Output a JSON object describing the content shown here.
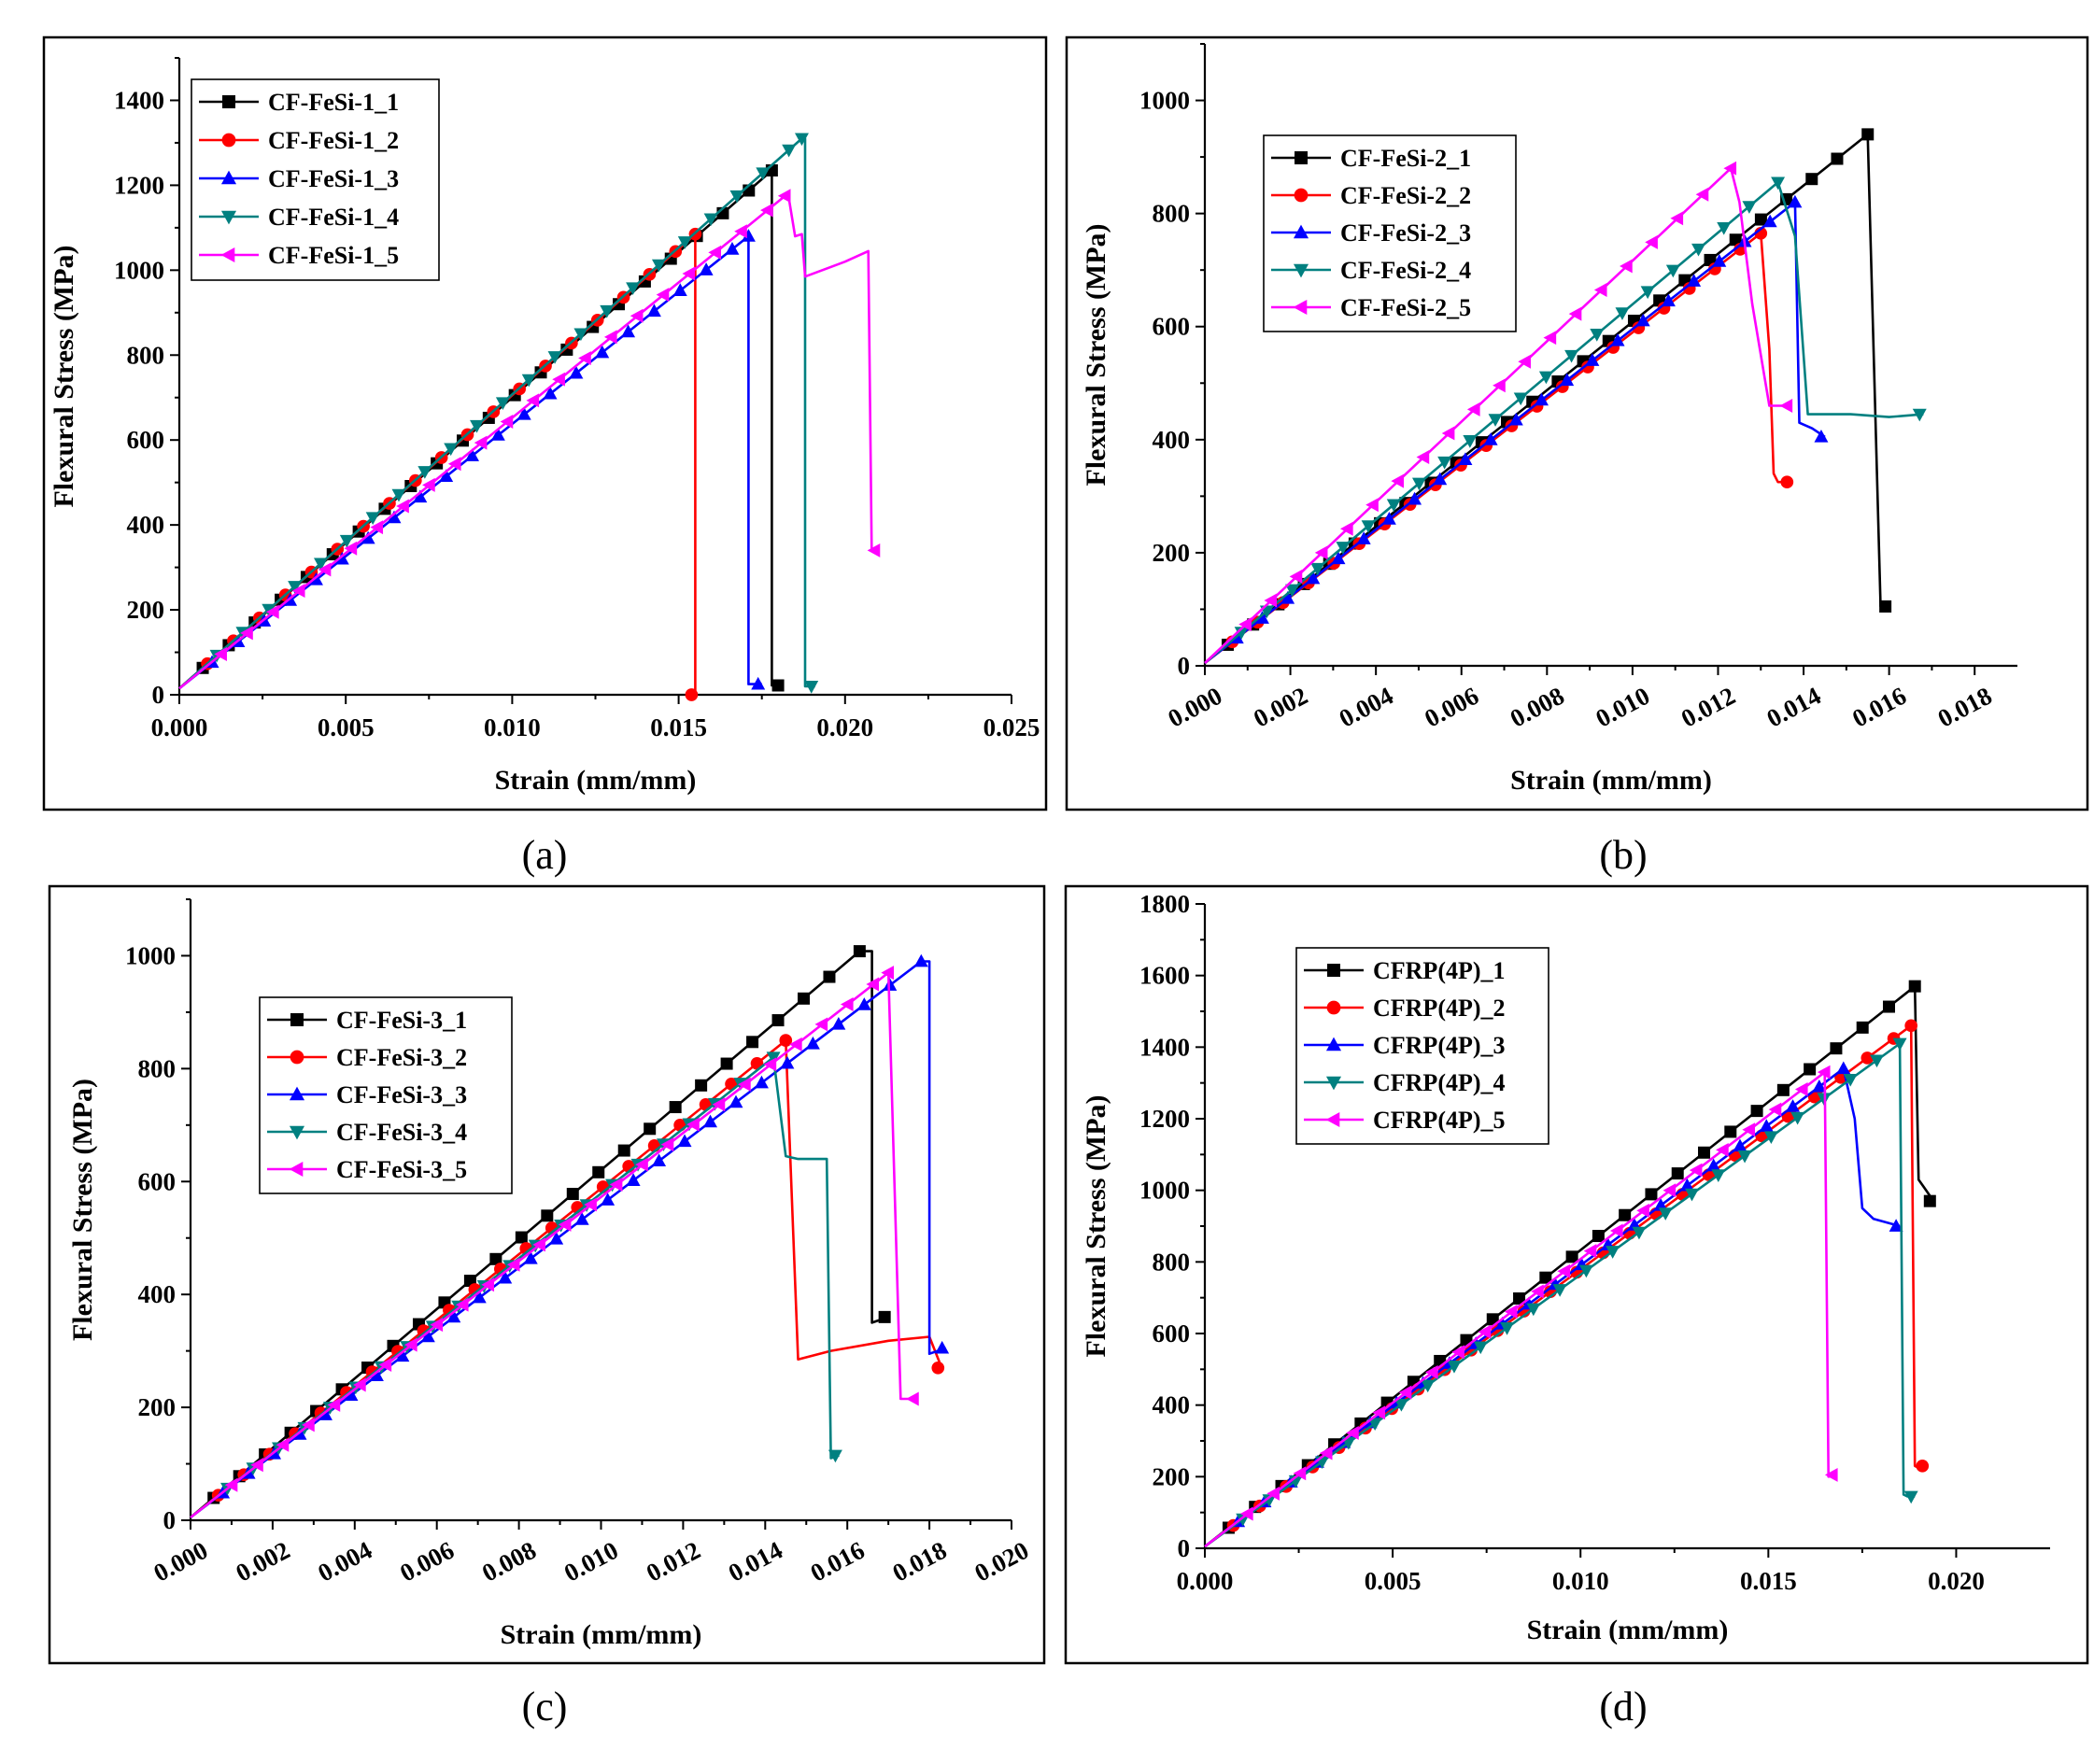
{
  "figure": {
    "panels": [
      "(a)",
      "(b)",
      "(c)",
      "(d)"
    ]
  },
  "chart_data": [
    {
      "type": "line",
      "panel_label": "(a)",
      "xlabel": "Strain (mm/mm)",
      "ylabel": "Flexural Stress (MPa)",
      "xlim": [
        0.0,
        0.025
      ],
      "ylim": [
        0,
        1500
      ],
      "xticks": [
        0.0,
        0.005,
        0.01,
        0.015,
        0.02,
        0.025
      ],
      "xtick_labels": [
        "0.000",
        "0.005",
        "0.010",
        "0.015",
        "0.020",
        "0.025"
      ],
      "yticks": [
        0,
        200,
        400,
        600,
        800,
        1000,
        1200,
        1400
      ],
      "ytick_labels": [
        "0",
        "200",
        "400",
        "600",
        "800",
        "1000",
        "1200",
        "1400"
      ],
      "rotated_xticks": false,
      "legend_position": "top-left",
      "series": [
        {
          "name": "CF-FeSi-1_1",
          "color": "#000000",
          "marker": "square",
          "x": [
            0,
            0.0178,
            0.0178,
            0.0181
          ],
          "y": [
            15,
            1235,
            22,
            22
          ]
        },
        {
          "name": "CF-FeSi-1_2",
          "color": "#ff0000",
          "marker": "circle",
          "x": [
            0,
            0.0155,
            0.0155
          ],
          "y": [
            15,
            1085,
            0
          ]
        },
        {
          "name": "CF-FeSi-1_3",
          "color": "#0000ff",
          "marker": "triangle-up",
          "x": [
            0,
            0.0171,
            0.0171,
            0.0175
          ],
          "y": [
            15,
            1080,
            25,
            25
          ]
        },
        {
          "name": "CF-FeSi-1_4",
          "color": "#008080",
          "marker": "triangle-down",
          "x": [
            0,
            0.0187,
            0.0188,
            0.0188,
            0.0191
          ],
          "y": [
            15,
            1310,
            1310,
            20,
            20
          ]
        },
        {
          "name": "CF-FeSi-1_5",
          "color": "#ff00ff",
          "marker": "triangle-left",
          "x": [
            0,
            0.0182,
            0.0183,
            0.0185,
            0.0187,
            0.0188,
            0.02,
            0.0207,
            0.0208,
            0.021
          ],
          "y": [
            15,
            1175,
            1175,
            1080,
            1085,
            985,
            1020,
            1045,
            340,
            340
          ]
        }
      ]
    },
    {
      "type": "line",
      "panel_label": "(b)",
      "xlabel": "Strain (mm/mm)",
      "ylabel": "Flexural Stress (MPa)",
      "xlim": [
        0.0,
        0.019
      ],
      "ylim": [
        0,
        1100
      ],
      "xticks": [
        0.0,
        0.002,
        0.004,
        0.006,
        0.008,
        0.01,
        0.012,
        0.014,
        0.016,
        0.018
      ],
      "xtick_labels": [
        "0.000",
        "0.002",
        "0.004",
        "0.006",
        "0.008",
        "0.010",
        "0.012",
        "0.014",
        "0.016",
        "0.018"
      ],
      "yticks": [
        0,
        200,
        400,
        600,
        800,
        1000
      ],
      "ytick_labels": [
        "0",
        "200",
        "400",
        "600",
        "800",
        "1000"
      ],
      "rotated_xticks": true,
      "legend_position": "top-left",
      "series": [
        {
          "name": "CF-FeSi-2_1",
          "color": "#000000",
          "marker": "square",
          "x": [
            0,
            0.0155,
            0.0155,
            0.0158,
            0.016
          ],
          "y": [
            5,
            940,
            940,
            105,
            105
          ]
        },
        {
          "name": "CF-FeSi-2_2",
          "color": "#ff0000",
          "marker": "circle",
          "x": [
            0,
            0.013,
            0.0132,
            0.0133,
            0.0134,
            0.0137
          ],
          "y": [
            5,
            765,
            560,
            340,
            325,
            325
          ]
        },
        {
          "name": "CF-FeSi-2_3",
          "color": "#0000ff",
          "marker": "triangle-up",
          "x": [
            0,
            0.0138,
            0.0139,
            0.0142,
            0.0145
          ],
          "y": [
            5,
            820,
            430,
            420,
            405
          ]
        },
        {
          "name": "CF-FeSi-2_4",
          "color": "#008080",
          "marker": "triangle-down",
          "x": [
            0,
            0.0134,
            0.0138,
            0.0141,
            0.0151,
            0.016,
            0.0168
          ],
          "y": [
            5,
            855,
            760,
            445,
            445,
            440,
            445
          ]
        },
        {
          "name": "CF-FeSi-2_5",
          "color": "#ff00ff",
          "marker": "triangle-left",
          "x": [
            0,
            0.0123,
            0.0125,
            0.0128,
            0.0132,
            0.0135,
            0.0137
          ],
          "y": [
            5,
            880,
            820,
            640,
            460,
            460,
            460
          ]
        }
      ]
    },
    {
      "type": "line",
      "panel_label": "(c)",
      "xlabel": "Strain (mm/mm)",
      "ylabel": "Flexural Stress (MPa)",
      "xlim": [
        0.0,
        0.02
      ],
      "ylim": [
        0,
        1100
      ],
      "xticks": [
        0.0,
        0.002,
        0.004,
        0.006,
        0.008,
        0.01,
        0.012,
        0.014,
        0.016,
        0.018,
        0.02
      ],
      "xtick_labels": [
        "0.000",
        "0.002",
        "0.004",
        "0.006",
        "0.008",
        "0.010",
        "0.012",
        "0.014",
        "0.016",
        "0.018",
        "0.020"
      ],
      "yticks": [
        0,
        200,
        400,
        600,
        800,
        1000
      ],
      "ytick_labels": [
        "0",
        "200",
        "400",
        "600",
        "800",
        "1000"
      ],
      "rotated_xticks": true,
      "legend_position": "upper-left",
      "series": [
        {
          "name": "CF-FeSi-3_1",
          "color": "#000000",
          "marker": "square",
          "x": [
            0,
            0.0163,
            0.0166,
            0.0166,
            0.017
          ],
          "y": [
            5,
            1008,
            1008,
            350,
            360
          ]
        },
        {
          "name": "CF-FeSi-3_2",
          "color": "#ff0000",
          "marker": "circle",
          "x": [
            0,
            0.0145,
            0.0148,
            0.0156,
            0.017,
            0.018,
            0.0183
          ],
          "y": [
            5,
            850,
            285,
            300,
            318,
            325,
            270
          ]
        },
        {
          "name": "CF-FeSi-3_3",
          "color": "#0000ff",
          "marker": "triangle-up",
          "x": [
            0,
            0.0178,
            0.018,
            0.018,
            0.0184
          ],
          "y": [
            5,
            990,
            990,
            295,
            305
          ]
        },
        {
          "name": "CF-FeSi-3_4",
          "color": "#008080",
          "marker": "triangle-down",
          "x": [
            0,
            0.0142,
            0.0145,
            0.0148,
            0.0155,
            0.0156,
            0.0158
          ],
          "y": [
            5,
            820,
            645,
            640,
            640,
            110,
            115
          ]
        },
        {
          "name": "CF-FeSi-3_5",
          "color": "#ff00ff",
          "marker": "triangle-left",
          "x": [
            0,
            0.017,
            0.0173,
            0.0177
          ],
          "y": [
            5,
            970,
            215,
            215
          ]
        }
      ]
    },
    {
      "type": "line",
      "panel_label": "(d)",
      "xlabel": "Strain (mm/mm)",
      "ylabel": "Flexural Stress (MPa)",
      "xlim": [
        0.0,
        0.0225
      ],
      "ylim": [
        0,
        1800
      ],
      "xticks": [
        0.0,
        0.005,
        0.01,
        0.015,
        0.02
      ],
      "xtick_labels": [
        "0.000",
        "0.005",
        "0.010",
        "0.015",
        "0.020"
      ],
      "yticks": [
        0,
        200,
        400,
        600,
        800,
        1000,
        1200,
        1400,
        1600,
        1800
      ],
      "ytick_labels": [
        "0",
        "200",
        "400",
        "600",
        "800",
        "1000",
        "1200",
        "1400",
        "1600",
        "1800"
      ],
      "rotated_xticks": false,
      "legend_position": "top-left",
      "series": [
        {
          "name": "CFRP(4P)_1",
          "color": "#000000",
          "marker": "square",
          "x": [
            0,
            0.0189,
            0.019,
            0.0192,
            0.0194
          ],
          "y": [
            5,
            1570,
            1030,
            1000,
            970
          ]
        },
        {
          "name": "CFRP(4P)_2",
          "color": "#ff0000",
          "marker": "circle",
          "x": [
            0,
            0.0188,
            0.0189,
            0.019,
            0.0192
          ],
          "y": [
            5,
            1460,
            230,
            225,
            230
          ]
        },
        {
          "name": "CFRP(4P)_3",
          "color": "#0000ff",
          "marker": "triangle-up",
          "x": [
            0,
            0.017,
            0.0173,
            0.0175,
            0.0178,
            0.0185
          ],
          "y": [
            5,
            1340,
            1200,
            950,
            920,
            900
          ]
        },
        {
          "name": "CFRP(4P)_4",
          "color": "#008080",
          "marker": "triangle-down",
          "x": [
            0,
            0.0185,
            0.0186,
            0.0187,
            0.0189
          ],
          "y": [
            5,
            1410,
            150,
            145,
            145
          ]
        },
        {
          "name": "CFRP(4P)_5",
          "color": "#ff00ff",
          "marker": "triangle-left",
          "x": [
            0,
            0.0165,
            0.0166,
            0.0168
          ],
          "y": [
            5,
            1330,
            200,
            205
          ]
        }
      ]
    }
  ]
}
